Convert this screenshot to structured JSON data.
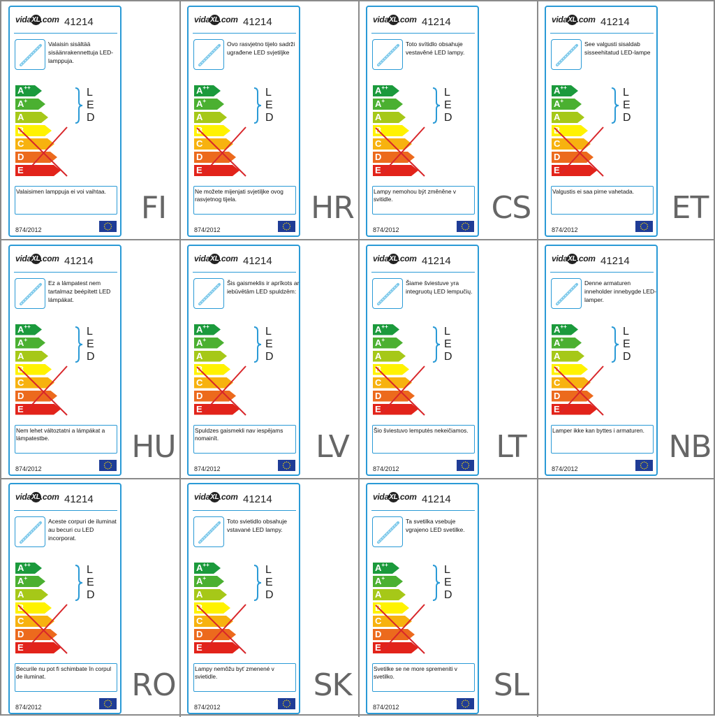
{
  "brand": {
    "logo_text_left": "vida",
    "logo_text_x": "XL",
    "logo_text_right": ".com"
  },
  "article_number": "41214",
  "regulation": "874/2012",
  "led_letters": [
    "L",
    "E",
    "D"
  ],
  "energy_classes": [
    {
      "label": "A",
      "sup": "++",
      "color": "#1b9a3c"
    },
    {
      "label": "A",
      "sup": "+",
      "color": "#4bb031"
    },
    {
      "label": "A",
      "sup": "",
      "color": "#a6c818"
    },
    {
      "label": "B",
      "sup": "",
      "color": "#fff200"
    },
    {
      "label": "C",
      "sup": "",
      "color": "#f7b20f"
    },
    {
      "label": "D",
      "sup": "",
      "color": "#ec6a1d"
    },
    {
      "label": "E",
      "sup": "",
      "color": "#e2231a"
    }
  ],
  "colors": {
    "accent": "#2a9ad6",
    "cross": "#d8262a",
    "grid": "#8a8a8a"
  },
  "labels": [
    {
      "lang": "FI",
      "desc": "Valaisin sisältää sisäänrakennettuja LED-lamppuja.",
      "note": "Valaisimen lamppuja ei voi vaihtaa."
    },
    {
      "lang": "HR",
      "desc": "Ovo rasvjetno tijelo sadrži ugrađene LED svjetiljke",
      "note": "Ne možete mijenjati svjetiljke ovog rasvjetnog tijela."
    },
    {
      "lang": "CS",
      "desc": "Toto svítidlo obsahuje vestavěné LED lampy.",
      "note": "Lampy nemohou být změněne v svitidle."
    },
    {
      "lang": "ET",
      "desc": "See valgusti sisaldab sisseehitatud LED-lampe",
      "note": "Valgustis ei saa pirne vahetada."
    },
    {
      "lang": "HU",
      "desc": "Ez a lámpatest nem tartalmaz beépített LED lámpákat.",
      "note": "Nem lehet változtatni a lámpákat a lámpatestbe."
    },
    {
      "lang": "LV",
      "desc": "Šis gaismeklis ir aprīkots ar iebūvētām LED spuldzēm:",
      "note": "Spuldzes gaismekli nav iespējams nomainīt."
    },
    {
      "lang": "LT",
      "desc": "Šiame šviestuve yra integruotų LED lempučių.",
      "note": "Šio šviestuvo lemputės nekeičiamos."
    },
    {
      "lang": "NB",
      "desc": "Denne armaturen inneholder innebygde LED-lamper.",
      "note": "Lamper ikke kan byttes i armaturen."
    },
    {
      "lang": "RO",
      "desc": "Aceste corpuri de iluminat au becuri cu LED incorporat.",
      "note": "Becurile nu pot fi schimbate în corpul de iluminat."
    },
    {
      "lang": "SK",
      "desc": "Toto svietidlo obsahuje vstavané LED lampy.",
      "note": "Lampy nemôžu byť zmenené v svietidle."
    },
    {
      "lang": "SL",
      "desc": "Ta svetilka vsebuje vgrajeno LED svetilke.",
      "note": "Svetilke se ne more spremeniti v svetilko."
    }
  ]
}
